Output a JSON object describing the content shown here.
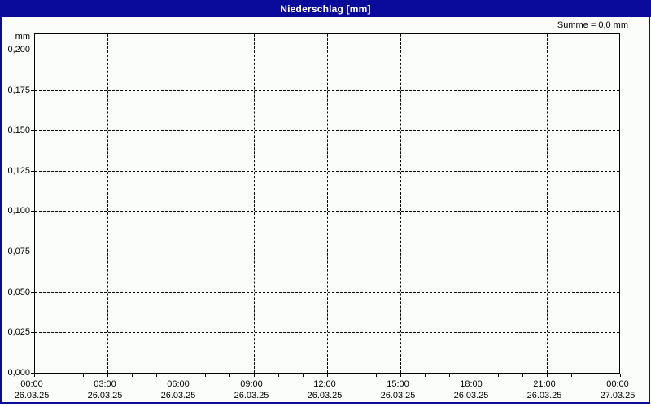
{
  "window": {
    "title": "Niederschlag [mm]",
    "summary": "Summe = 0,0 mm",
    "unit_label": "mm",
    "colors": {
      "titlebar": "#0b0b9b",
      "border": "#0b0b9b",
      "paper": "#fbfdfb",
      "grid": "#000000",
      "text": "#000000",
      "title_text": "#ffffff"
    }
  },
  "chart_data": {
    "type": "bar",
    "title": "Niederschlag [mm]",
    "ylabel": "mm",
    "xlabel": "",
    "summary": "Summe = 0,0 mm",
    "ylim": [
      0,
      0.21
    ],
    "ytick_values": [
      0.2,
      0.175,
      0.15,
      0.125,
      0.1,
      0.075,
      0.05,
      0.025,
      0.0
    ],
    "ytick_labels": [
      "0,200",
      "0,175",
      "0,150",
      "0,125",
      "0,100",
      "0,075",
      "0,050",
      "0,025",
      "0,000"
    ],
    "xlim_hours": [
      0,
      24
    ],
    "x_minor_tick_step_hours": 1,
    "x_major_ticks": [
      {
        "hour": 0,
        "time": "00:00",
        "date": "26.03.25"
      },
      {
        "hour": 3,
        "time": "03:00",
        "date": "26.03.25"
      },
      {
        "hour": 6,
        "time": "06:00",
        "date": "26.03.25"
      },
      {
        "hour": 9,
        "time": "09:00",
        "date": "26.03.25"
      },
      {
        "hour": 12,
        "time": "12:00",
        "date": "26.03.25"
      },
      {
        "hour": 15,
        "time": "15:00",
        "date": "26.03.25"
      },
      {
        "hour": 18,
        "time": "18:00",
        "date": "26.03.25"
      },
      {
        "hour": 21,
        "time": "21:00",
        "date": "26.03.25"
      },
      {
        "hour": 24,
        "time": "00:00",
        "date": "27.03.25"
      }
    ],
    "grid": "dashed",
    "legend": "none",
    "series": [],
    "values": []
  }
}
